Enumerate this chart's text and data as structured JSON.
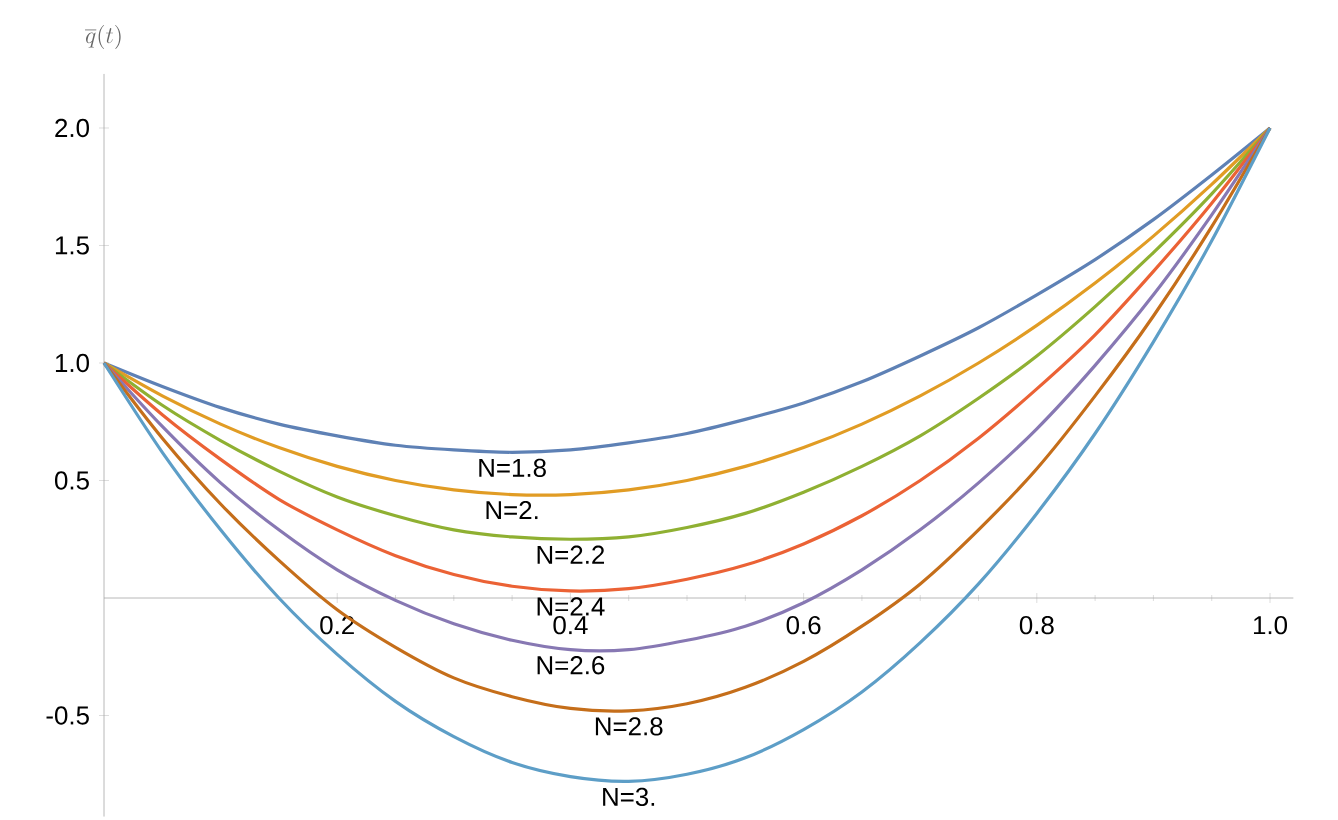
{
  "chart_data": {
    "type": "line",
    "ylabel": "\\overline{q}(t)",
    "x": [
      0,
      0.05,
      0.1,
      0.15,
      0.2,
      0.25,
      0.3,
      0.35,
      0.4,
      0.45,
      0.5,
      0.55,
      0.6,
      0.65,
      0.7,
      0.75,
      0.8,
      0.85,
      0.9,
      0.95,
      1
    ],
    "series": [
      {
        "name": "N=1.8",
        "color": "#5e81b5",
        "values": [
          1,
          0.9,
          0.81,
          0.74,
          0.69,
          0.65,
          0.63,
          0.62,
          0.63,
          0.66,
          0.7,
          0.76,
          0.83,
          0.92,
          1.03,
          1.15,
          1.29,
          1.44,
          1.61,
          1.8,
          2
        ]
      },
      {
        "name": "N=2.",
        "color": "#e19c24",
        "values": [
          1,
          0.86,
          0.74,
          0.64,
          0.56,
          0.5,
          0.46,
          0.44,
          0.44,
          0.46,
          0.5,
          0.56,
          0.64,
          0.74,
          0.86,
          1.0,
          1.16,
          1.34,
          1.54,
          1.76,
          2
        ]
      },
      {
        "name": "N=2.2",
        "color": "#8fb032",
        "values": [
          1,
          0.82,
          0.67,
          0.54,
          0.43,
          0.35,
          0.29,
          0.26,
          0.25,
          0.26,
          0.3,
          0.36,
          0.45,
          0.56,
          0.69,
          0.85,
          1.03,
          1.24,
          1.47,
          1.72,
          2
        ]
      },
      {
        "name": "N=2.4",
        "color": "#eb6235",
        "values": [
          1,
          0.78,
          0.59,
          0.42,
          0.29,
          0.18,
          0.1,
          0.05,
          0.03,
          0.04,
          0.08,
          0.14,
          0.23,
          0.35,
          0.5,
          0.68,
          0.89,
          1.12,
          1.39,
          1.68,
          2
        ]
      },
      {
        "name": "N=2.6",
        "color": "#8778b3",
        "values": [
          1,
          0.73,
          0.49,
          0.29,
          0.12,
          -0.01,
          -0.11,
          -0.18,
          -0.22,
          -0.22,
          -0.18,
          -0.12,
          -0.02,
          0.12,
          0.29,
          0.49,
          0.72,
          0.99,
          1.29,
          1.63,
          2
        ]
      },
      {
        "name": "N=2.8",
        "color": "#c56e1a",
        "values": [
          1,
          0.68,
          0.4,
          0.16,
          -0.05,
          -0.21,
          -0.34,
          -0.42,
          -0.47,
          -0.48,
          -0.45,
          -0.38,
          -0.27,
          -0.12,
          0.06,
          0.29,
          0.55,
          0.86,
          1.2,
          1.58,
          2
        ]
      },
      {
        "name": "N=3.",
        "color": "#5d9ec7",
        "values": [
          1,
          0.62,
          0.29,
          0.0,
          -0.24,
          -0.44,
          -0.59,
          -0.7,
          -0.76,
          -0.78,
          -0.75,
          -0.68,
          -0.56,
          -0.4,
          -0.19,
          0.06,
          0.36,
          0.7,
          1.09,
          1.52,
          2
        ]
      }
    ],
    "xlim": [
      0,
      1.02
    ],
    "ylim": [
      -0.93,
      2.23
    ],
    "xticks": [
      0.2,
      0.4,
      0.6,
      0.8,
      {
        "value": 1.0,
        "label": "1.0"
      }
    ],
    "yticks": [
      -0.5,
      0.5,
      {
        "value": 1.0,
        "label": "1.0"
      },
      1.5,
      {
        "value": 2.0,
        "label": "2.0"
      }
    ],
    "grid": false,
    "marker": "none",
    "line_style": "solid"
  }
}
